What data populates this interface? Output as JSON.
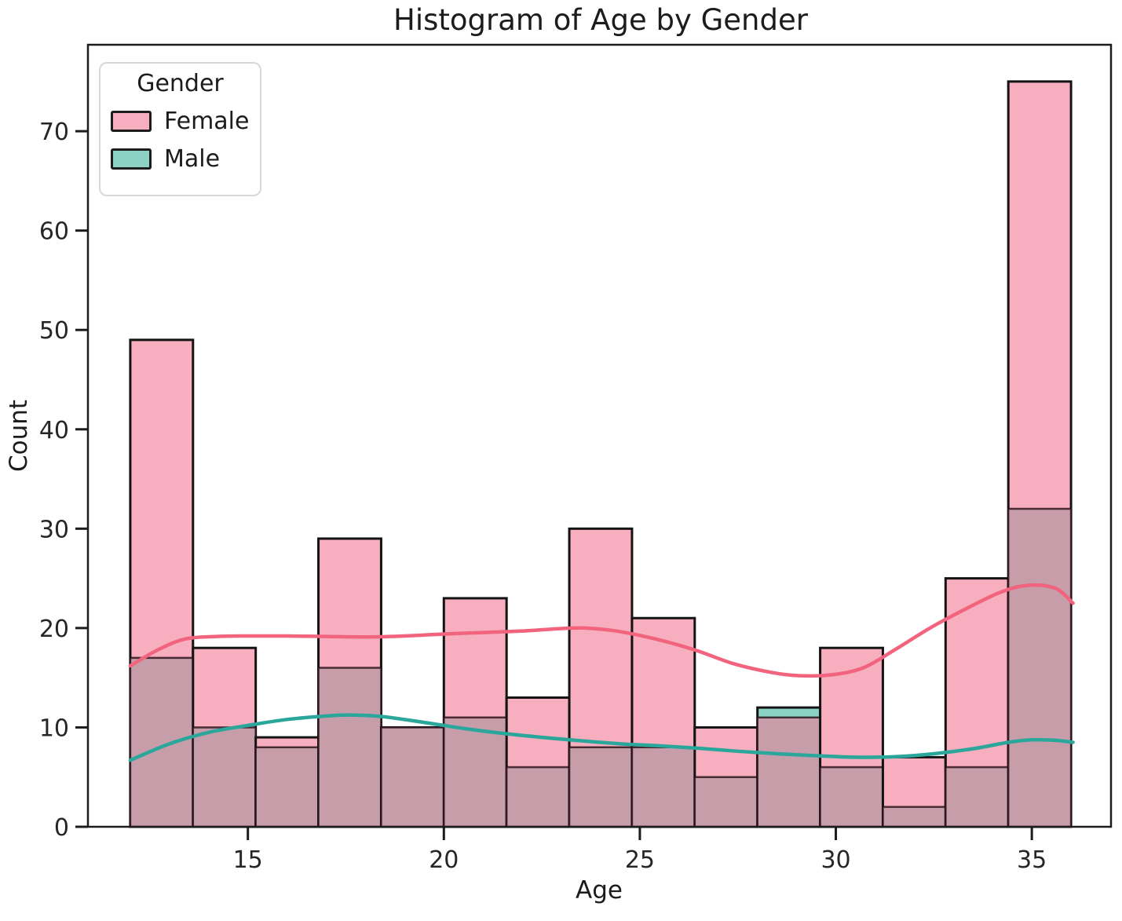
{
  "title": "Histogram of Age by Gender",
  "axes": {
    "x": {
      "label": "Age",
      "ticks": [
        15,
        20,
        25,
        30,
        35
      ],
      "range": [
        10.92,
        37.02
      ]
    },
    "y": {
      "label": "Count",
      "ticks": [
        0,
        10,
        20,
        30,
        40,
        50,
        60,
        70
      ],
      "range": [
        0,
        78.7
      ]
    }
  },
  "legend": {
    "title": "Gender",
    "entries": [
      {
        "label": "Female",
        "color": "#F7AEBF"
      },
      {
        "label": "Male",
        "color": "#8BD2C5"
      }
    ]
  },
  "colors": {
    "female_fill": "#F7AEBF",
    "male_fill": "#8BD2C5",
    "overlap_fill": "#C79DAA",
    "female_line": "#F2647E",
    "male_line": "#2BA69B",
    "edge": "#141414",
    "spine": "#1c1c1c",
    "text": "#262626"
  },
  "chart_data": {
    "type": "bar",
    "subtype": "overlaid-histogram-with-kde",
    "title": "Histogram of Age by Gender",
    "xlabel": "Age",
    "ylabel": "Count",
    "xlim": [
      10.92,
      37.02
    ],
    "ylim": [
      0,
      78.7
    ],
    "grid": false,
    "legend_position": "upper left",
    "bin_edges": [
      12.0,
      13.6,
      15.2,
      16.8,
      18.4,
      20.0,
      21.6,
      23.2,
      24.8,
      26.4,
      28.0,
      29.6,
      31.2,
      32.8,
      34.4,
      36.0
    ],
    "series": [
      {
        "name": "Female",
        "values": [
          49,
          18,
          9,
          29,
          10,
          23,
          13,
          30,
          21,
          10,
          11,
          18,
          7,
          25,
          75
        ]
      },
      {
        "name": "Male",
        "values": [
          17,
          10,
          8,
          16,
          10,
          11,
          6,
          8,
          8,
          5,
          12,
          6,
          2,
          6,
          32
        ]
      }
    ],
    "kde": [
      {
        "name": "Female",
        "points": [
          [
            12,
            16.2
          ],
          [
            12.7,
            17.8
          ],
          [
            13.4,
            18.9
          ],
          [
            14.2,
            19.15
          ],
          [
            15,
            19.2
          ],
          [
            16,
            19.2
          ],
          [
            17,
            19.15
          ],
          [
            18,
            19.1
          ],
          [
            19,
            19.2
          ],
          [
            20,
            19.4
          ],
          [
            21,
            19.55
          ],
          [
            22,
            19.7
          ],
          [
            23,
            19.95
          ],
          [
            23.6,
            20.0
          ],
          [
            24.4,
            19.7
          ],
          [
            25.4,
            18.9
          ],
          [
            26.4,
            17.8
          ],
          [
            27.4,
            16.4
          ],
          [
            28.4,
            15.5
          ],
          [
            29.1,
            15.2
          ],
          [
            29.9,
            15.3
          ],
          [
            30.7,
            16.0
          ],
          [
            31.5,
            17.8
          ],
          [
            32.4,
            20.0
          ],
          [
            33.3,
            21.9
          ],
          [
            34.2,
            23.6
          ],
          [
            34.9,
            24.3
          ],
          [
            35.6,
            24.0
          ],
          [
            36.05,
            22.5
          ]
        ]
      },
      {
        "name": "Male",
        "points": [
          [
            12,
            6.7
          ],
          [
            13,
            8.35
          ],
          [
            14,
            9.5
          ],
          [
            15,
            10.2
          ],
          [
            16,
            10.8
          ],
          [
            17,
            11.15
          ],
          [
            17.6,
            11.25
          ],
          [
            18.4,
            11.1
          ],
          [
            19.5,
            10.5
          ],
          [
            20.5,
            9.9
          ],
          [
            21.5,
            9.4
          ],
          [
            22.5,
            9.0
          ],
          [
            23.5,
            8.65
          ],
          [
            24.5,
            8.35
          ],
          [
            25.5,
            8.15
          ],
          [
            26.5,
            7.9
          ],
          [
            27.5,
            7.6
          ],
          [
            28.5,
            7.35
          ],
          [
            29.5,
            7.15
          ],
          [
            30.5,
            7.0
          ],
          [
            31.5,
            7.05
          ],
          [
            32.5,
            7.35
          ],
          [
            33.5,
            7.85
          ],
          [
            34.4,
            8.5
          ],
          [
            35.0,
            8.75
          ],
          [
            35.6,
            8.7
          ],
          [
            36.05,
            8.5
          ]
        ]
      }
    ]
  }
}
